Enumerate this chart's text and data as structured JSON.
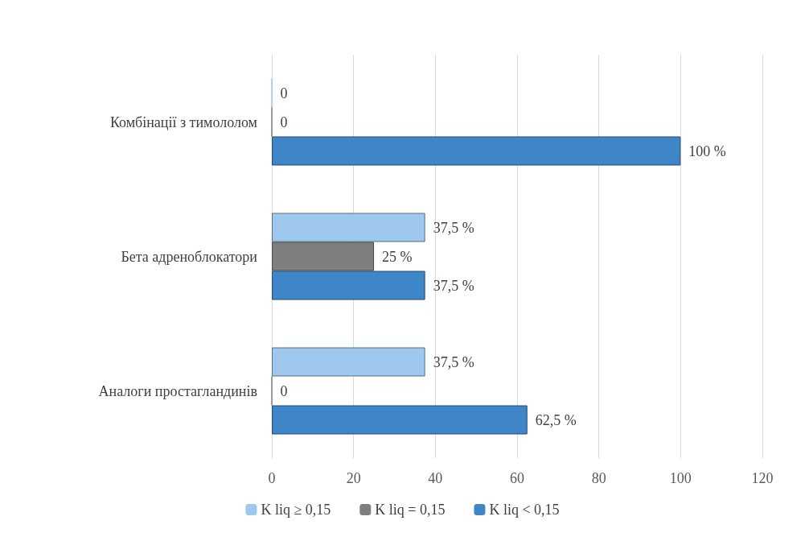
{
  "chart_data": {
    "type": "bar",
    "orientation": "horizontal",
    "categories": [
      "Комбінації з тимололом",
      "Бета адреноблокатори",
      "Аналоги простагландинів"
    ],
    "series": [
      {
        "name": "K liq ≥ 0,15",
        "color": "#9ec8ee",
        "values": [
          0,
          37.5,
          37.5
        ],
        "value_labels": [
          "0",
          "37,5 %",
          "37,5 %"
        ]
      },
      {
        "name": "K liq = 0,15",
        "color": "#7f7f7f",
        "values": [
          0,
          25,
          0
        ],
        "value_labels": [
          "0",
          "25 %",
          "0"
        ]
      },
      {
        "name": "K liq < 0,15",
        "color": "#3f86c9",
        "values": [
          100,
          37.5,
          62.5
        ],
        "value_labels": [
          "100 %",
          "37,5 %",
          "62,5 %"
        ]
      }
    ],
    "xlim": [
      0,
      120
    ],
    "xticks": [
      0,
      20,
      40,
      60,
      80,
      100,
      120
    ],
    "grid": "x",
    "legend": "bottom"
  }
}
